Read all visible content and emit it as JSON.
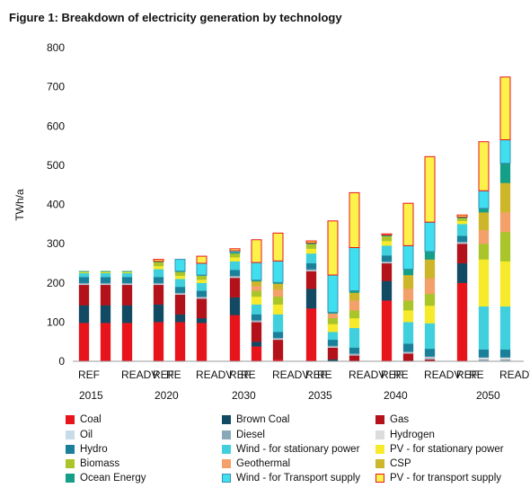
{
  "figure_title": "Figure 1: Breakdown of electricity generation by technology",
  "chart_data": {
    "type": "bar",
    "stacked": true,
    "title": "",
    "xlabel": "",
    "ylabel": "TWh/a",
    "ylim": [
      0,
      800
    ],
    "yticks": [
      0,
      100,
      200,
      300,
      400,
      500,
      600,
      700,
      800
    ],
    "grid": false,
    "legend_position": "bottom",
    "groups": [
      "2015",
      "2020",
      "2030",
      "2035",
      "2040",
      "2050"
    ],
    "scenarios": [
      "REF",
      "READV",
      "RE"
    ],
    "series_order": [
      "coal",
      "brown_coal",
      "gas",
      "oil",
      "diesel",
      "hydrogen",
      "hydro",
      "wind_stationary",
      "pv_stationary",
      "biomass",
      "geothermal",
      "csp",
      "ocean",
      "wind_transport",
      "pv_transport"
    ],
    "series": [
      {
        "key": "coal",
        "name": "Coal",
        "color": "#e8141c",
        "border": "#e8141c"
      },
      {
        "key": "brown_coal",
        "name": "Brown Coal",
        "color": "#124a63",
        "border": "#124a63"
      },
      {
        "key": "gas",
        "name": "Gas",
        "color": "#b3121b",
        "border": "#b3121b"
      },
      {
        "key": "oil",
        "name": "Oil",
        "color": "#c7dce8",
        "border": "#c7dce8"
      },
      {
        "key": "diesel",
        "name": "Diesel",
        "color": "#8aa9b8",
        "border": "#8aa9b8"
      },
      {
        "key": "hydrogen",
        "name": "Hydrogen",
        "color": "#dcdcdc",
        "border": "#dcdcdc"
      },
      {
        "key": "hydro",
        "name": "Hydro",
        "color": "#1a7f99",
        "border": "#1a7f99"
      },
      {
        "key": "wind_stationary",
        "name": "Wind - for stationary power",
        "color": "#40cfdc",
        "border": "#40cfdc"
      },
      {
        "key": "pv_stationary",
        "name": "PV - for stationary power",
        "color": "#f6ea2a",
        "border": "#f6ea2a"
      },
      {
        "key": "biomass",
        "name": "Biomass",
        "color": "#a9c52a",
        "border": "#a9c52a"
      },
      {
        "key": "geothermal",
        "name": "Geothermal",
        "color": "#f4a06a",
        "border": "#f4a06a"
      },
      {
        "key": "csp",
        "name": "CSP",
        "color": "#cdb62a",
        "border": "#cdb62a"
      },
      {
        "key": "ocean",
        "name": "Ocean Energy",
        "color": "#159e88",
        "border": "#159e88"
      },
      {
        "key": "wind_transport",
        "name": "Wind - for Transport supply",
        "color": "#40dff0",
        "border": "#3a8fb0"
      },
      {
        "key": "pv_transport",
        "name": "PV - for transport supply",
        "color": "#fdf24a",
        "border": "#e8141c"
      }
    ],
    "bars": [
      {
        "group": "2015",
        "scenario": "REF",
        "values": {
          "coal": 98,
          "brown_coal": 45,
          "gas": 52,
          "oil": 2,
          "diesel": 3,
          "hydrogen": 0,
          "hydro": 15,
          "wind_stationary": 10,
          "pv_stationary": 2,
          "biomass": 2,
          "geothermal": 0,
          "csp": 0,
          "ocean": 1,
          "wind_transport": 0,
          "pv_transport": 0
        }
      },
      {
        "group": "2015",
        "scenario": "READV",
        "values": {
          "coal": 98,
          "brown_coal": 45,
          "gas": 52,
          "oil": 2,
          "diesel": 3,
          "hydrogen": 0,
          "hydro": 15,
          "wind_stationary": 10,
          "pv_stationary": 2,
          "biomass": 2,
          "geothermal": 0,
          "csp": 0,
          "ocean": 1,
          "wind_transport": 0,
          "pv_transport": 0
        }
      },
      {
        "group": "2015",
        "scenario": "RE",
        "values": {
          "coal": 98,
          "brown_coal": 45,
          "gas": 52,
          "oil": 2,
          "diesel": 3,
          "hydrogen": 0,
          "hydro": 15,
          "wind_stationary": 10,
          "pv_stationary": 2,
          "biomass": 2,
          "geothermal": 0,
          "csp": 0,
          "ocean": 1,
          "wind_transport": 0,
          "pv_transport": 0
        }
      },
      {
        "group": "2020",
        "scenario": "REF",
        "values": {
          "coal": 100,
          "brown_coal": 45,
          "gas": 50,
          "oil": 2,
          "diesel": 3,
          "hydrogen": 0,
          "hydro": 15,
          "wind_stationary": 20,
          "pv_stationary": 8,
          "biomass": 10,
          "geothermal": 0,
          "csp": 0,
          "ocean": 2,
          "wind_transport": 0,
          "pv_transport": 5
        }
      },
      {
        "group": "2020",
        "scenario": "READV",
        "values": {
          "coal": 100,
          "brown_coal": 20,
          "gas": 50,
          "oil": 2,
          "diesel": 3,
          "hydrogen": 0,
          "hydro": 15,
          "wind_stationary": 20,
          "pv_stationary": 8,
          "biomass": 10,
          "geothermal": 0,
          "csp": 0,
          "ocean": 2,
          "wind_transport": 30,
          "pv_transport": 0
        }
      },
      {
        "group": "2020",
        "scenario": "RE",
        "values": {
          "coal": 98,
          "brown_coal": 12,
          "gas": 50,
          "oil": 2,
          "diesel": 3,
          "hydrogen": 0,
          "hydro": 15,
          "wind_stationary": 20,
          "pv_stationary": 8,
          "biomass": 10,
          "geothermal": 0,
          "csp": 0,
          "ocean": 2,
          "wind_transport": 30,
          "pv_transport": 18
        }
      },
      {
        "group": "2030",
        "scenario": "REF",
        "values": {
          "coal": 118,
          "brown_coal": 45,
          "gas": 50,
          "oil": 2,
          "diesel": 3,
          "hydrogen": 0,
          "hydro": 15,
          "wind_stationary": 22,
          "pv_stationary": 10,
          "biomass": 10,
          "geothermal": 0,
          "csp": 0,
          "ocean": 3,
          "wind_transport": 4,
          "pv_transport": 5
        }
      },
      {
        "group": "2030",
        "scenario": "READV",
        "values": {
          "coal": 38,
          "brown_coal": 12,
          "gas": 50,
          "oil": 2,
          "diesel": 3,
          "hydrogen": 0,
          "hydro": 15,
          "wind_stationary": 25,
          "pv_stationary": 20,
          "biomass": 15,
          "geothermal": 12,
          "csp": 12,
          "ocean": 3,
          "wind_transport": 45,
          "pv_transport": 58
        }
      },
      {
        "group": "2030",
        "scenario": "RE",
        "values": {
          "coal": 5,
          "brown_coal": 0,
          "gas": 50,
          "oil": 2,
          "diesel": 3,
          "hydrogen": 0,
          "hydro": 15,
          "wind_stationary": 45,
          "pv_stationary": 25,
          "biomass": 20,
          "geothermal": 18,
          "csp": 15,
          "ocean": 3,
          "wind_transport": 55,
          "pv_transport": 71
        }
      },
      {
        "group": "2035",
        "scenario": "REF",
        "values": {
          "coal": 135,
          "brown_coal": 50,
          "gas": 45,
          "oil": 2,
          "diesel": 3,
          "hydrogen": 0,
          "hydro": 15,
          "wind_stationary": 25,
          "pv_stationary": 12,
          "biomass": 12,
          "geothermal": 0,
          "csp": 0,
          "ocean": 3,
          "wind_transport": 0,
          "pv_transport": 5
        }
      },
      {
        "group": "2035",
        "scenario": "READV",
        "values": {
          "coal": 0,
          "brown_coal": 5,
          "gas": 30,
          "oil": 2,
          "diesel": 3,
          "hydrogen": 0,
          "hydro": 15,
          "wind_stationary": 20,
          "pv_stationary": 20,
          "biomass": 15,
          "geothermal": 12,
          "csp": 0,
          "ocean": 3,
          "wind_transport": 95,
          "pv_transport": 138
        }
      },
      {
        "group": "2035",
        "scenario": "RE",
        "values": {
          "coal": 0,
          "brown_coal": 0,
          "gas": 15,
          "oil": 2,
          "diesel": 3,
          "hydrogen": 0,
          "hydro": 15,
          "wind_stationary": 50,
          "pv_stationary": 25,
          "biomass": 20,
          "geothermal": 25,
          "csp": 20,
          "ocean": 5,
          "wind_transport": 110,
          "pv_transport": 140
        }
      },
      {
        "group": "2040",
        "scenario": "REF",
        "values": {
          "coal": 155,
          "brown_coal": 50,
          "gas": 45,
          "oil": 2,
          "diesel": 3,
          "hydrogen": 0,
          "hydro": 15,
          "wind_stationary": 25,
          "pv_stationary": 12,
          "biomass": 12,
          "geothermal": 0,
          "csp": 0,
          "ocean": 3,
          "wind_transport": 0,
          "pv_transport": 3
        }
      },
      {
        "group": "2040",
        "scenario": "READV",
        "values": {
          "coal": 0,
          "brown_coal": 0,
          "gas": 20,
          "oil": 2,
          "diesel": 3,
          "hydrogen": 0,
          "hydro": 20,
          "wind_stationary": 55,
          "pv_stationary": 30,
          "biomass": 25,
          "geothermal": 30,
          "csp": 35,
          "ocean": 15,
          "wind_transport": 60,
          "pv_transport": 108
        }
      },
      {
        "group": "2040",
        "scenario": "RE",
        "values": {
          "coal": 0,
          "brown_coal": 0,
          "gas": 5,
          "oil": 2,
          "diesel": 3,
          "hydrogen": 2,
          "hydro": 20,
          "wind_stationary": 65,
          "pv_stationary": 45,
          "biomass": 30,
          "geothermal": 40,
          "csp": 48,
          "ocean": 20,
          "wind_transport": 75,
          "pv_transport": 167
        }
      },
      {
        "group": "2050",
        "scenario": "REF",
        "values": {
          "coal": 200,
          "brown_coal": 50,
          "gas": 50,
          "oil": 2,
          "diesel": 3,
          "hydrogen": 0,
          "hydro": 15,
          "wind_stationary": 30,
          "pv_stationary": 8,
          "biomass": 7,
          "geothermal": 0,
          "csp": 0,
          "ocean": 3,
          "wind_transport": 0,
          "pv_transport": 5
        }
      },
      {
        "group": "2050",
        "scenario": "READV",
        "values": {
          "coal": 0,
          "brown_coal": 0,
          "gas": 0,
          "oil": 2,
          "diesel": 3,
          "hydrogen": 5,
          "hydro": 20,
          "wind_stationary": 110,
          "pv_stationary": 120,
          "biomass": 40,
          "geothermal": 35,
          "csp": 45,
          "ocean": 10,
          "wind_transport": 45,
          "pv_transport": 125
        }
      },
      {
        "group": "2050",
        "scenario": "RE",
        "values": {
          "coal": 0,
          "brown_coal": 0,
          "gas": 0,
          "oil": 2,
          "diesel": 3,
          "hydrogen": 5,
          "hydro": 20,
          "wind_stationary": 110,
          "pv_stationary": 115,
          "biomass": 75,
          "geothermal": 50,
          "csp": 75,
          "ocean": 50,
          "wind_transport": 60,
          "pv_transport": 160
        }
      }
    ]
  }
}
